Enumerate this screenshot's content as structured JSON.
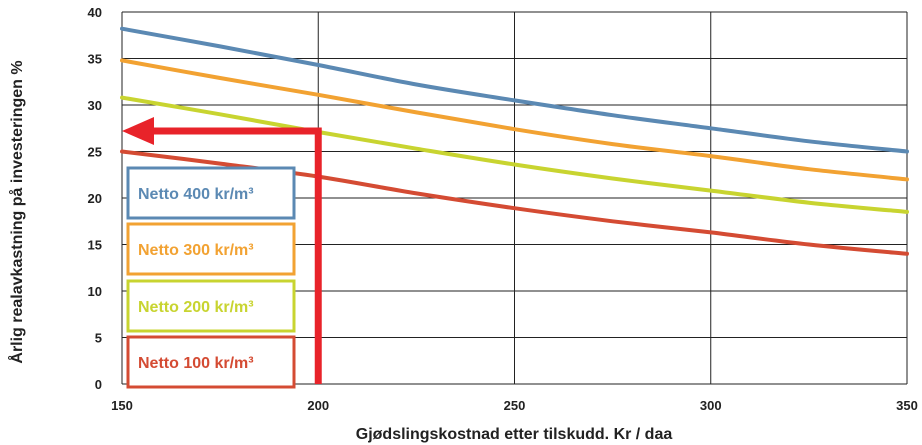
{
  "chart_data": {
    "type": "line",
    "title": "",
    "xlabel": "Gjødslingskostnad etter tilskudd. Kr / daa",
    "ylabel": "Årlig realavkastning på investeringen %",
    "xlim": [
      150,
      350
    ],
    "ylim": [
      0,
      40
    ],
    "x_ticks": [
      150,
      200,
      250,
      300,
      350
    ],
    "y_ticks": [
      0,
      5,
      10,
      15,
      20,
      25,
      30,
      35,
      40
    ],
    "grid": true,
    "legend_position": "left",
    "series": [
      {
        "name": "Netto 400 kr/m³",
        "color": "#5b89b3",
        "x": [
          150,
          175,
          200,
          225,
          250,
          275,
          300,
          325,
          350
        ],
        "y": [
          38.2,
          36.3,
          34.3,
          32.2,
          30.5,
          28.9,
          27.5,
          26.1,
          25.0
        ]
      },
      {
        "name": "Netto 300 kr/m³",
        "color": "#f2a232",
        "x": [
          150,
          175,
          200,
          225,
          250,
          275,
          300,
          325,
          350
        ],
        "y": [
          34.8,
          32.9,
          31.1,
          29.2,
          27.4,
          25.8,
          24.5,
          23.1,
          22.0
        ]
      },
      {
        "name": "Netto 200 kr/m³",
        "color": "#c8d430",
        "x": [
          150,
          175,
          200,
          225,
          250,
          275,
          300,
          325,
          350
        ],
        "y": [
          30.8,
          29.0,
          27.1,
          25.3,
          23.6,
          22.1,
          20.8,
          19.5,
          18.5
        ]
      },
      {
        "name": "Netto 100 kr/m³",
        "color": "#d44b33",
        "x": [
          150,
          175,
          200,
          225,
          250,
          275,
          300,
          325,
          350
        ],
        "y": [
          25.0,
          23.7,
          22.3,
          20.5,
          18.9,
          17.5,
          16.3,
          15.0,
          14.0
        ]
      }
    ],
    "annotations": [
      {
        "type": "arrow",
        "color": "#e8232a",
        "from": {
          "x": 200,
          "y": 0
        },
        "corner": {
          "x": 200,
          "y": 27.2
        },
        "to": {
          "x": 150,
          "y": 27.2
        }
      }
    ]
  }
}
